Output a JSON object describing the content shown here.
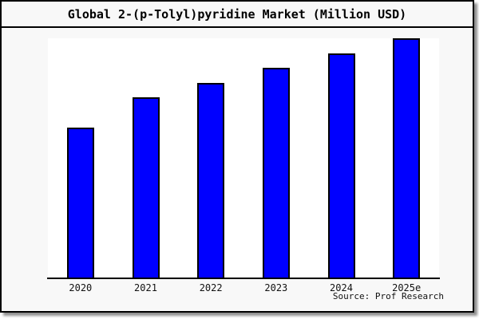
{
  "title": "Global 2-(p-Tolyl)pyridine Market (Million USD)",
  "source_text": "Source: Prof Research",
  "colors": {
    "bar_fill": "#0000ff",
    "bar_border": "#000000",
    "background": "#f8f8f8",
    "plot_background": "#ffffff",
    "frame_border": "#000000"
  },
  "chart_data": {
    "type": "bar",
    "title": "Global 2-(p-Tolyl)pyridine Market (Million USD)",
    "categories": [
      "2020",
      "2021",
      "2022",
      "2023",
      "2024",
      "2025e"
    ],
    "values": [
      62.7,
      75.3,
      81.3,
      87.7,
      93.7,
      100
    ],
    "value_note": "relative index estimated from bar heights, 2025e = 100; no y-axis tick labels are visible in the source image",
    "xlabel": "",
    "ylabel": "",
    "ylim": [
      0,
      101
    ],
    "grid": false,
    "legend": false,
    "source": "Source: Prof Research"
  }
}
